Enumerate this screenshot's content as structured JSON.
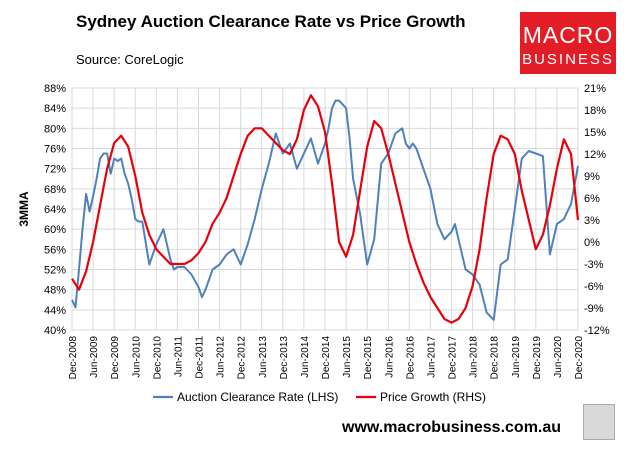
{
  "header": {
    "title": "Sydney Auction Clearance Rate vs Price Growth",
    "source": "Source: CoreLogic"
  },
  "brand": {
    "logo_line1": "MACRO",
    "logo_line2": "BUSINESS",
    "url": "www.macrobusiness.com.au",
    "accent": "#e31d26"
  },
  "chart_data": {
    "type": "line",
    "ylabel_left": "3MMA",
    "y_left": {
      "min": 40,
      "max": 88,
      "step": 4,
      "suffix": "%"
    },
    "y_right": {
      "min": -12,
      "max": 21,
      "step": 3,
      "suffix": "%"
    },
    "x_range": [
      0,
      144
    ],
    "x_ticks": [
      "Dec-2008",
      "Jun-2009",
      "Dec-2009",
      "Jun-2010",
      "Dec-2010",
      "Jun-2011",
      "Dec-2011",
      "Jun-2012",
      "Dec-2012",
      "Jun-2013",
      "Dec-2013",
      "Jun-2014",
      "Dec-2014",
      "Jun-2015",
      "Dec-2015",
      "Jun-2016",
      "Dec-2016",
      "Jun-2017",
      "Dec-2017",
      "Jun-2018",
      "Dec-2018",
      "Jun-2019",
      "Dec-2019",
      "Jun-2020",
      "Dec-2020"
    ],
    "series": [
      {
        "name": "Auction Clearance Rate (LHS)",
        "axis": "left",
        "color": "#4f81bd",
        "x": [
          0,
          1,
          2,
          3,
          4,
          5,
          6,
          7,
          8,
          9,
          10,
          11,
          12,
          13,
          14,
          15,
          16,
          17,
          18,
          19,
          20,
          22,
          24,
          26,
          28,
          29,
          30,
          32,
          34,
          36,
          37,
          38,
          40,
          42,
          44,
          46,
          48,
          50,
          52,
          54,
          56,
          58,
          60,
          62,
          64,
          66,
          68,
          70,
          72,
          73,
          74,
          75,
          76,
          78,
          79,
          80,
          82,
          84,
          86,
          88,
          90,
          92,
          94,
          95,
          96,
          97,
          98,
          100,
          102,
          104,
          106,
          108,
          109,
          110,
          112,
          114,
          116,
          118,
          120,
          122,
          124,
          126,
          128,
          130,
          132,
          134,
          136,
          138,
          140,
          142,
          144
        ],
        "values": [
          46,
          44.5,
          52,
          60,
          67,
          63.5,
          66.5,
          70,
          74,
          75,
          75,
          71,
          74,
          73.5,
          74,
          71,
          69,
          66,
          62,
          61.5,
          61.5,
          53,
          57,
          60,
          54,
          52,
          52.5,
          52.5,
          51,
          48.5,
          46.5,
          48,
          52,
          53,
          55,
          56,
          53,
          57,
          62,
          68,
          73,
          79,
          75,
          77,
          72,
          75,
          78,
          73,
          77,
          80,
          84,
          85.5,
          85.5,
          84,
          78,
          70,
          63,
          53,
          58,
          73,
          75,
          79,
          80,
          77,
          76,
          77,
          76,
          72,
          68,
          61,
          58,
          59.5,
          61,
          58,
          52,
          51,
          49,
          43.5,
          42,
          53,
          54,
          64,
          74,
          75.5,
          75,
          74.5,
          55,
          61,
          62,
          65,
          72.5
        ]
      },
      {
        "name": "Price Growth (RHS)",
        "axis": "right",
        "color": "#e8000b",
        "x": [
          0,
          2,
          4,
          6,
          8,
          10,
          12,
          14,
          16,
          18,
          20,
          22,
          24,
          26,
          28,
          30,
          32,
          34,
          36,
          38,
          40,
          42,
          44,
          46,
          48,
          50,
          52,
          54,
          56,
          58,
          60,
          62,
          64,
          66,
          68,
          70,
          72,
          74,
          76,
          78,
          80,
          82,
          84,
          86,
          88,
          90,
          92,
          94,
          96,
          98,
          100,
          102,
          104,
          106,
          108,
          110,
          112,
          114,
          116,
          118,
          120,
          122,
          124,
          126,
          128,
          130,
          132,
          134,
          136,
          138,
          140,
          142,
          144
        ],
        "values": [
          -5,
          -6.5,
          -4,
          0,
          5,
          10,
          13.5,
          14.5,
          13,
          9,
          4,
          1,
          -1,
          -2,
          -3,
          -3,
          -3,
          -2.5,
          -1.5,
          0,
          2.5,
          4,
          6,
          9,
          12,
          14.5,
          15.5,
          15.5,
          14.5,
          13.5,
          12.5,
          12,
          14,
          18,
          20,
          18.5,
          15,
          8,
          0,
          -2,
          1,
          7,
          13,
          16.5,
          15.5,
          12,
          8,
          4,
          0,
          -3,
          -5.5,
          -7.5,
          -9,
          -10.5,
          -11,
          -10.5,
          -9,
          -6,
          -1,
          6,
          12,
          14.5,
          14,
          12,
          7,
          3,
          -1,
          1,
          5,
          10,
          14,
          12,
          3
        ]
      }
    ],
    "legend": [
      "Auction Clearance Rate (LHS)",
      "Price Growth (RHS)"
    ],
    "legend_position": "bottom"
  }
}
